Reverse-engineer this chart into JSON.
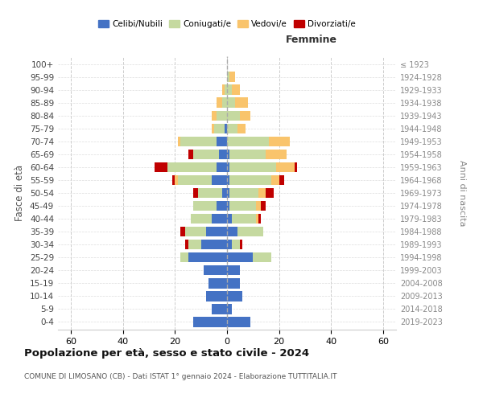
{
  "age_groups": [
    "0-4",
    "5-9",
    "10-14",
    "15-19",
    "20-24",
    "25-29",
    "30-34",
    "35-39",
    "40-44",
    "45-49",
    "50-54",
    "55-59",
    "60-64",
    "65-69",
    "70-74",
    "75-79",
    "80-84",
    "85-89",
    "90-94",
    "95-99",
    "100+"
  ],
  "birth_years": [
    "2019-2023",
    "2014-2018",
    "2009-2013",
    "2004-2008",
    "1999-2003",
    "1994-1998",
    "1989-1993",
    "1984-1988",
    "1979-1983",
    "1974-1978",
    "1969-1973",
    "1964-1968",
    "1959-1963",
    "1954-1958",
    "1949-1953",
    "1944-1948",
    "1939-1943",
    "1934-1938",
    "1929-1933",
    "1924-1928",
    "≤ 1923"
  ],
  "males": {
    "celibi": [
      13,
      6,
      8,
      7,
      9,
      15,
      10,
      8,
      6,
      4,
      2,
      6,
      4,
      3,
      4,
      1,
      0,
      0,
      0,
      0,
      0
    ],
    "coniugati": [
      0,
      0,
      0,
      0,
      0,
      3,
      5,
      8,
      8,
      9,
      9,
      13,
      19,
      10,
      14,
      4,
      4,
      2,
      1,
      0,
      0
    ],
    "vedovi": [
      0,
      0,
      0,
      0,
      0,
      0,
      0,
      0,
      0,
      0,
      0,
      1,
      0,
      0,
      1,
      1,
      2,
      2,
      1,
      0,
      0
    ],
    "divorziati": [
      0,
      0,
      0,
      0,
      0,
      0,
      1,
      2,
      0,
      0,
      2,
      1,
      5,
      2,
      0,
      0,
      0,
      0,
      0,
      0,
      0
    ]
  },
  "females": {
    "nubili": [
      9,
      2,
      6,
      5,
      5,
      10,
      2,
      4,
      2,
      1,
      1,
      1,
      1,
      1,
      0,
      0,
      0,
      0,
      0,
      0,
      0
    ],
    "coniugate": [
      0,
      0,
      0,
      0,
      0,
      7,
      3,
      10,
      9,
      10,
      11,
      16,
      18,
      14,
      16,
      4,
      5,
      3,
      2,
      1,
      0
    ],
    "vedove": [
      0,
      0,
      0,
      0,
      0,
      0,
      0,
      0,
      1,
      2,
      3,
      3,
      7,
      8,
      8,
      3,
      4,
      5,
      3,
      2,
      0
    ],
    "divorziate": [
      0,
      0,
      0,
      0,
      0,
      0,
      1,
      0,
      1,
      2,
      3,
      2,
      1,
      0,
      0,
      0,
      0,
      0,
      0,
      0,
      0
    ]
  },
  "colors": {
    "celibi": "#4472C4",
    "coniugati": "#C5D9A0",
    "vedovi": "#F9C46C",
    "divorziati": "#C00000"
  },
  "xlim": 65,
  "title": "Popolazione per età, sesso e stato civile - 2024",
  "subtitle": "COMUNE DI LIMOSANO (CB) - Dati ISTAT 1° gennaio 2024 - Elaborazione TUTTITALIA.IT",
  "ylabel": "Fasce di età",
  "ylabel_right": "Anni di nascita",
  "xlabel_right": "Femmine",
  "legend_labels": [
    "Celibi/Nubili",
    "Coniugati/e",
    "Vedovi/e",
    "Divorziati/e"
  ],
  "background_color": "#ffffff",
  "grid_color": "#cccccc"
}
